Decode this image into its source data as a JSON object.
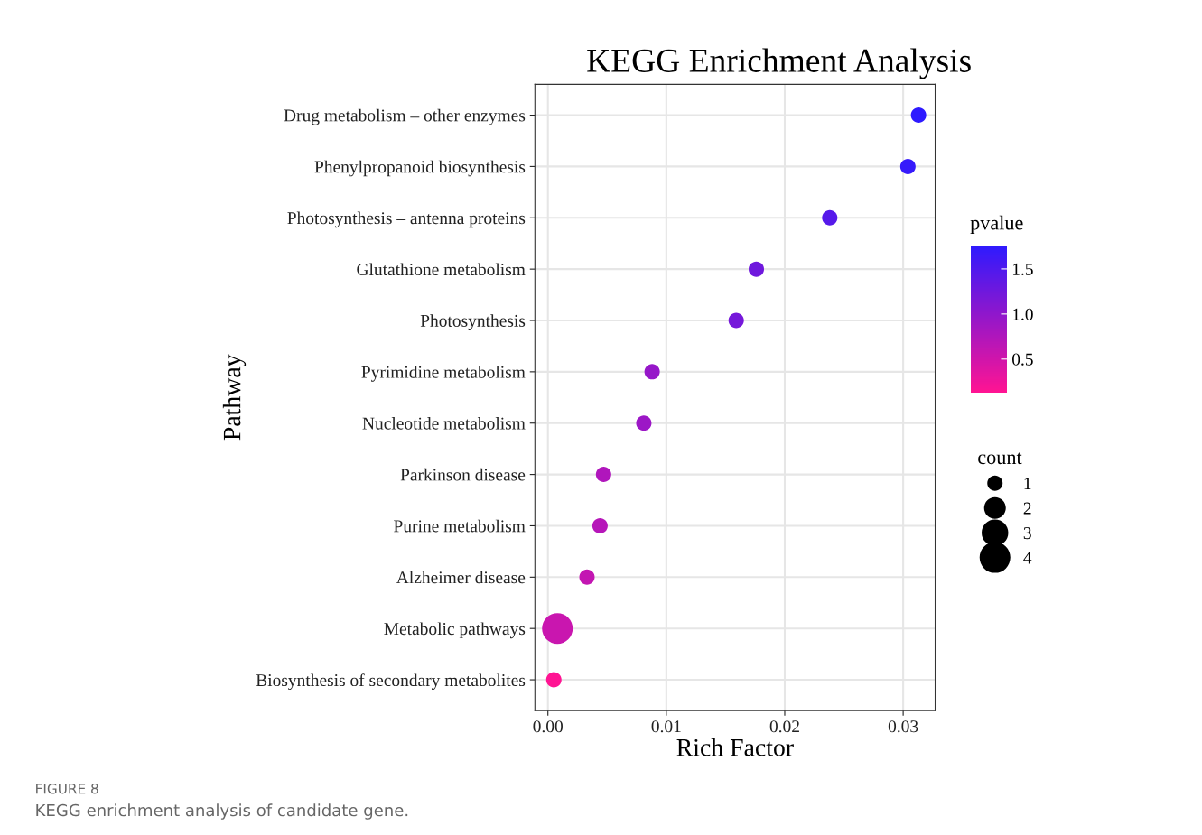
{
  "chart_data": {
    "type": "bubble",
    "orientation": "horizontal",
    "title": "KEGG Enrichment Analysis",
    "xlabel": "Rich Factor",
    "ylabel": "Pathway",
    "categories": [
      "Drug metabolism – other enzymes",
      "Phenylpropanoid biosynthesis",
      "Photosynthesis – antenna proteins",
      "Glutathione metabolism",
      "Photosynthesis",
      "Pyrimidine metabolism",
      "Nucleotide metabolism",
      "Parkinson disease",
      "Purine metabolism",
      "Alzheimer disease",
      "Metabolic pathways",
      "Biosynthesis of secondary metabolites"
    ],
    "values": [
      0.0313,
      0.0304,
      0.0238,
      0.0176,
      0.0159,
      0.0088,
      0.0081,
      0.0047,
      0.0044,
      0.0033,
      0.0008,
      0.0005
    ],
    "sizes": [
      1,
      1,
      1,
      1,
      1,
      1,
      1,
      1,
      1,
      1,
      4,
      1
    ],
    "size_legend": [
      1,
      2,
      3,
      4
    ],
    "cvalues": [
      1.76,
      1.7,
      1.45,
      1.25,
      1.2,
      0.95,
      0.9,
      0.75,
      0.7,
      0.6,
      0.55,
      0.13
    ],
    "colors": [
      "#2e1aff",
      "#361afb",
      "#5619ea",
      "#6f18dd",
      "#7618da",
      "#9617c9",
      "#9c17c6",
      "#b016bc",
      "#b616b9",
      "#c316b2",
      "#c916af",
      "#ff1493"
    ],
    "clabel": "pvalue",
    "clim": [
      0.13,
      1.76
    ],
    "cticks": [
      0.5,
      {
        "value": 1,
        "label": "1.0"
      },
      1.5
    ],
    "legend_title": "count",
    "xlim": [
      -0.0011,
      0.0327
    ],
    "xticks": [
      {
        "value": 0,
        "label": "0.00"
      },
      0.01,
      0.02,
      0.03
    ],
    "grid": true,
    "marker": "circle",
    "annotations": [
      "FIGURE 8",
      "KEGG enrichment analysis of candidate gene."
    ]
  }
}
